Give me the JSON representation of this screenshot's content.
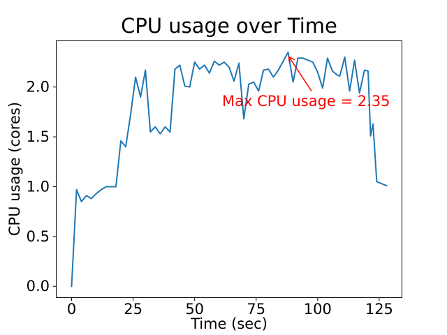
{
  "chart_data": {
    "type": "line",
    "title": "CPU usage over Time",
    "xlabel": "Time (sec)",
    "ylabel": "CPU usage (cores)",
    "x": [
      0,
      2,
      4,
      6,
      8,
      10,
      12,
      14,
      16,
      18,
      20,
      22,
      24,
      26,
      28,
      30,
      32,
      34,
      36,
      38,
      40,
      42,
      44,
      46,
      48,
      50,
      52,
      54,
      56,
      58,
      60,
      62,
      64,
      66,
      68,
      70,
      72,
      74,
      76,
      78,
      80,
      82,
      84,
      86,
      88,
      90,
      92,
      94,
      96,
      98,
      100,
      102,
      104,
      106,
      108,
      109,
      111,
      113,
      115,
      117,
      119,
      120.5,
      121.5,
      122.5,
      124,
      126,
      128
    ],
    "y": [
      0.0,
      0.97,
      0.85,
      0.91,
      0.88,
      0.93,
      0.97,
      1.0,
      1.0,
      1.0,
      1.46,
      1.4,
      1.73,
      2.1,
      1.9,
      2.17,
      1.55,
      1.6,
      1.53,
      1.6,
      1.55,
      2.18,
      2.22,
      2.01,
      2.0,
      2.25,
      2.18,
      2.22,
      2.14,
      2.26,
      2.22,
      2.25,
      2.2,
      2.06,
      2.24,
      1.68,
      2.03,
      2.05,
      1.96,
      2.17,
      2.18,
      2.1,
      2.17,
      2.26,
      2.35,
      2.05,
      2.29,
      2.29,
      2.27,
      2.25,
      2.15,
      1.99,
      2.29,
      2.16,
      2.12,
      2.11,
      2.3,
      1.96,
      2.27,
      1.94,
      2.17,
      2.16,
      1.51,
      1.63,
      1.05,
      1.03,
      1.01
    ],
    "xlim": [
      -6.4,
      134.4
    ],
    "ylim": [
      -0.1175,
      2.4675
    ],
    "xticks": [
      0,
      25,
      50,
      75,
      100,
      125
    ],
    "xtick_labels": [
      "0",
      "25",
      "50",
      "75",
      "100",
      "125"
    ],
    "yticks": [
      0.0,
      0.5,
      1.0,
      1.5,
      2.0
    ],
    "ytick_labels": [
      "0.0",
      "0.5",
      "1.0",
      "1.5",
      "2.0"
    ],
    "grid": false,
    "legend": null,
    "line_color": "#1f77b4",
    "max_value": 2.35,
    "annotation": {
      "text": "Max CPU usage = 2.35",
      "color": "#ff0000",
      "xy": [
        88,
        2.35
      ],
      "xytext": [
        61.2,
        1.82
      ],
      "arrow_from": [
        97.5,
        1.96
      ],
      "arrow_to": [
        88.4,
        2.3
      ]
    }
  }
}
